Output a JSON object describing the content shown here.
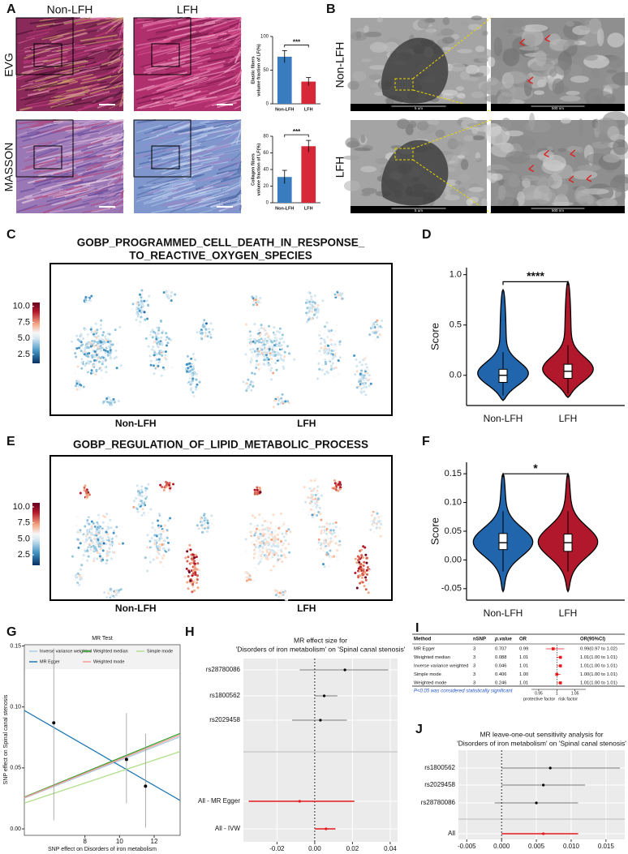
{
  "panel_labels": [
    "A",
    "B",
    "C",
    "D",
    "E",
    "F",
    "G",
    "H",
    "I",
    "J"
  ],
  "A": {
    "columns": [
      "Non-LFH",
      "LFH"
    ],
    "rows": [
      "EVG",
      "MASSON"
    ],
    "charts": [
      {
        "type": "bar",
        "ylabel": [
          "Elastic fibers",
          "volume fraction of LF(%)"
        ],
        "categories": [
          "Non-LFH",
          "LFH"
        ],
        "values": [
          70,
          33
        ],
        "errors": [
          9,
          6
        ],
        "colors": [
          "#3a7dbf",
          "#d62839"
        ],
        "ylim": [
          0,
          100
        ],
        "yticks": [
          0,
          50,
          100
        ],
        "significance": "***"
      },
      {
        "type": "bar",
        "ylabel": [
          "Collagen fibers",
          "volume fraction of LF(%)"
        ],
        "categories": [
          "Non-LFH",
          "LFH"
        ],
        "values": [
          31,
          68
        ],
        "errors": [
          8,
          7
        ],
        "colors": [
          "#3a7dbf",
          "#d62839"
        ],
        "ylim": [
          0,
          80
        ],
        "yticks": [
          0,
          20,
          40,
          60,
          80
        ],
        "significance": "***"
      }
    ]
  },
  "B": {
    "rows": [
      "Non-LFH",
      "LFH"
    ],
    "scale_bars": [
      "5 um",
      "500 nm"
    ]
  },
  "C": {
    "title": [
      "GOBP_PROGRAMMED_CELL_DEATH_IN_RESPONSE_",
      "TO_REACTIVE_OXYGEN_SPECIES"
    ],
    "groups": [
      "Non-LFH",
      "LFH"
    ],
    "colorbar": {
      "lim": [
        1.1,
        10.6
      ],
      "ticks": [
        2.5,
        {
          "value": 5,
          "label": "5.0"
        },
        7.5,
        {
          "value": 10,
          "label": "10.0"
        }
      ]
    }
  },
  "D": {
    "type": "violin",
    "ylabel": "Score",
    "categories": [
      "Non-LFH",
      "LFH"
    ],
    "colors": [
      "#2166ac",
      "#b2182b"
    ],
    "ylim": [
      -0.3,
      1.07
    ],
    "yticks": [
      {
        "value": 0,
        "label": "0.0"
      },
      0.5,
      {
        "value": 1,
        "label": "1.0"
      }
    ],
    "min": [
      -0.25,
      -0.22
    ],
    "whisker_low": [
      -0.2,
      -0.18
    ],
    "q1": [
      -0.07,
      -0.03
    ],
    "median": [
      0,
      0.04
    ],
    "q3": [
      0.06,
      0.11
    ],
    "whisker_high": [
      0.23,
      0.3
    ],
    "max": [
      0.85,
      0.93
    ],
    "significance": "****"
  },
  "E": {
    "title": [
      "GOBP_REGULATION_OF_LIPID_METABOLIC_PROCESS"
    ],
    "groups": [
      "Non-LFH",
      "LFH"
    ],
    "colorbar": {
      "lim": [
        0.85,
        10.64
      ],
      "ticks": [
        2.5,
        {
          "value": 5,
          "label": "5.0"
        },
        7.5,
        {
          "value": 10,
          "label": "10.0"
        }
      ]
    }
  },
  "F": {
    "type": "violin",
    "ylabel": "Score",
    "categories": [
      "Non-LFH",
      "LFH"
    ],
    "colors": [
      "#2166ac",
      "#b2182b"
    ],
    "ylim": [
      -0.07,
      0.17
    ],
    "yticks": [
      -0.05,
      {
        "value": 0,
        "label": "0.00"
      },
      0.05,
      {
        "value": 0.1,
        "label": "0.10"
      },
      0.15
    ],
    "min": [
      -0.055,
      -0.055
    ],
    "whisker_low": [
      -0.02,
      -0.02
    ],
    "q1": [
      0.018,
      0.015
    ],
    "median": [
      0.03,
      0.03
    ],
    "q3": [
      0.046,
      0.045
    ],
    "whisker_high": [
      0.085,
      0.085
    ],
    "max": [
      0.15,
      0.15
    ],
    "significance": "*"
  },
  "G": {
    "type": "mr_scatter",
    "title": "MR Test",
    "xlabel": "SNP effect on Disorders of iron metabolism",
    "ylabel": "SNP effect on Spinal canal stenosis",
    "x": [
      6.2,
      10.4,
      11.5
    ],
    "y": [
      0.087,
      0.057,
      0.035
    ],
    "y_low": [
      0.007,
      0.021,
      0.001
    ],
    "y_high": [
      0.148,
      0.095,
      0.078
    ],
    "xlim": [
      4.5,
      13.5
    ],
    "ylim": [
      -0.0053,
      0.151
    ],
    "xticks": [
      8,
      10,
      12
    ],
    "yticks": [
      {
        "value": 0,
        "label": "0.00"
      },
      0.05,
      {
        "value": 0.1,
        "label": "0.10"
      },
      0.15
    ],
    "lines": [
      {
        "name": "Inverse variance weighted",
        "color": "#a6cee3",
        "slope": 0.0056,
        "intercept": 0
      },
      {
        "name": "MR Egger",
        "color": "#1f78b4",
        "slope": -0.0082,
        "intercept": 0.134
      },
      {
        "name": "Weighted median",
        "color": "#33a02c",
        "slope": 0.0058,
        "intercept": 0
      },
      {
        "name": "Weighted mode",
        "color": "#fb9a99",
        "slope": 0.0057,
        "intercept": 0
      },
      {
        "name": "Simple mode",
        "color": "#b2df8a",
        "slope": 0.0047,
        "intercept": 0
      }
    ]
  },
  "H": {
    "type": "forest",
    "title": [
      "MR effect size for",
      "'Disorders of iron metabolism' on 'Spinal canal stenosis'"
    ],
    "labels": [
      "rs28780086",
      "rs1800562",
      "rs2029458",
      "All - MR Egger",
      "All - IVW"
    ],
    "values": [
      0.016,
      0.005,
      0.003,
      -0.008,
      0.006
    ],
    "lower": [
      -0.008,
      0,
      -0.012,
      -0.035,
      0
    ],
    "upper": [
      0.039,
      0.012,
      0.017,
      0.021,
      0.011
    ],
    "colors": [
      "#000000",
      "#000000",
      "#000000",
      "#e41a1c",
      "#e41a1c"
    ],
    "xlim": [
      -0.0378,
      0.0439
    ],
    "xticks": [
      -0.02,
      {
        "value": 0,
        "label": "0.00"
      },
      0.02,
      0.04
    ]
  },
  "I": {
    "columns": [
      "Method",
      "nSNP",
      "p.value",
      "OR",
      "OR(95%CI)"
    ],
    "rows": [
      [
        "MR Egger",
        "3",
        "0.707",
        "0.99",
        "0.99(0.97 to 1.02)"
      ],
      [
        "Weighted median",
        "3",
        "0.088",
        "1.01",
        "1.01(1.00 to 1.01)"
      ],
      [
        "Inverse variance weighted",
        "3",
        "0.046",
        "1.01",
        "1.01(1.00 to 1.01)"
      ],
      [
        "Simple mode",
        "3",
        "0.406",
        "1.00",
        "1.00(1.00 to 1.01)"
      ],
      [
        "Weighted mode",
        "3",
        "0.246",
        "1.01",
        "1.01(1.00 to 1.01)"
      ]
    ],
    "forest": {
      "xlim": [
        0.93,
        1.08
      ],
      "xticks": [
        0.95,
        1,
        1.05
      ],
      "color": "#e41a1c"
    },
    "axis_labels": [
      "protective factor",
      "risk factor"
    ],
    "note": "P<0.05 was considered statistically significant"
  },
  "J": {
    "type": "forest",
    "title": [
      "MR leave-one-out sensitivity analysis for",
      "'Disorders of iron metabolism' on 'Spinal canal stenosis'"
    ],
    "labels": [
      "rs1800562",
      "rs2029458",
      "rs28780086",
      "All"
    ],
    "values": [
      0.007,
      0.006,
      0.005,
      0.006
    ],
    "lower": [
      0,
      0,
      -0.001,
      0
    ],
    "upper": [
      0.017,
      0.012,
      0.011,
      0.011
    ],
    "colors": [
      "#000000",
      "#000000",
      "#000000",
      "#e41a1c"
    ],
    "xlim": [
      -0.0062,
      0.0177
    ],
    "xticks": [
      -0.005,
      {
        "value": 0,
        "label": "0.000"
      },
      0.005,
      {
        "value": 0.01,
        "label": "0.010"
      },
      0.015
    ]
  }
}
